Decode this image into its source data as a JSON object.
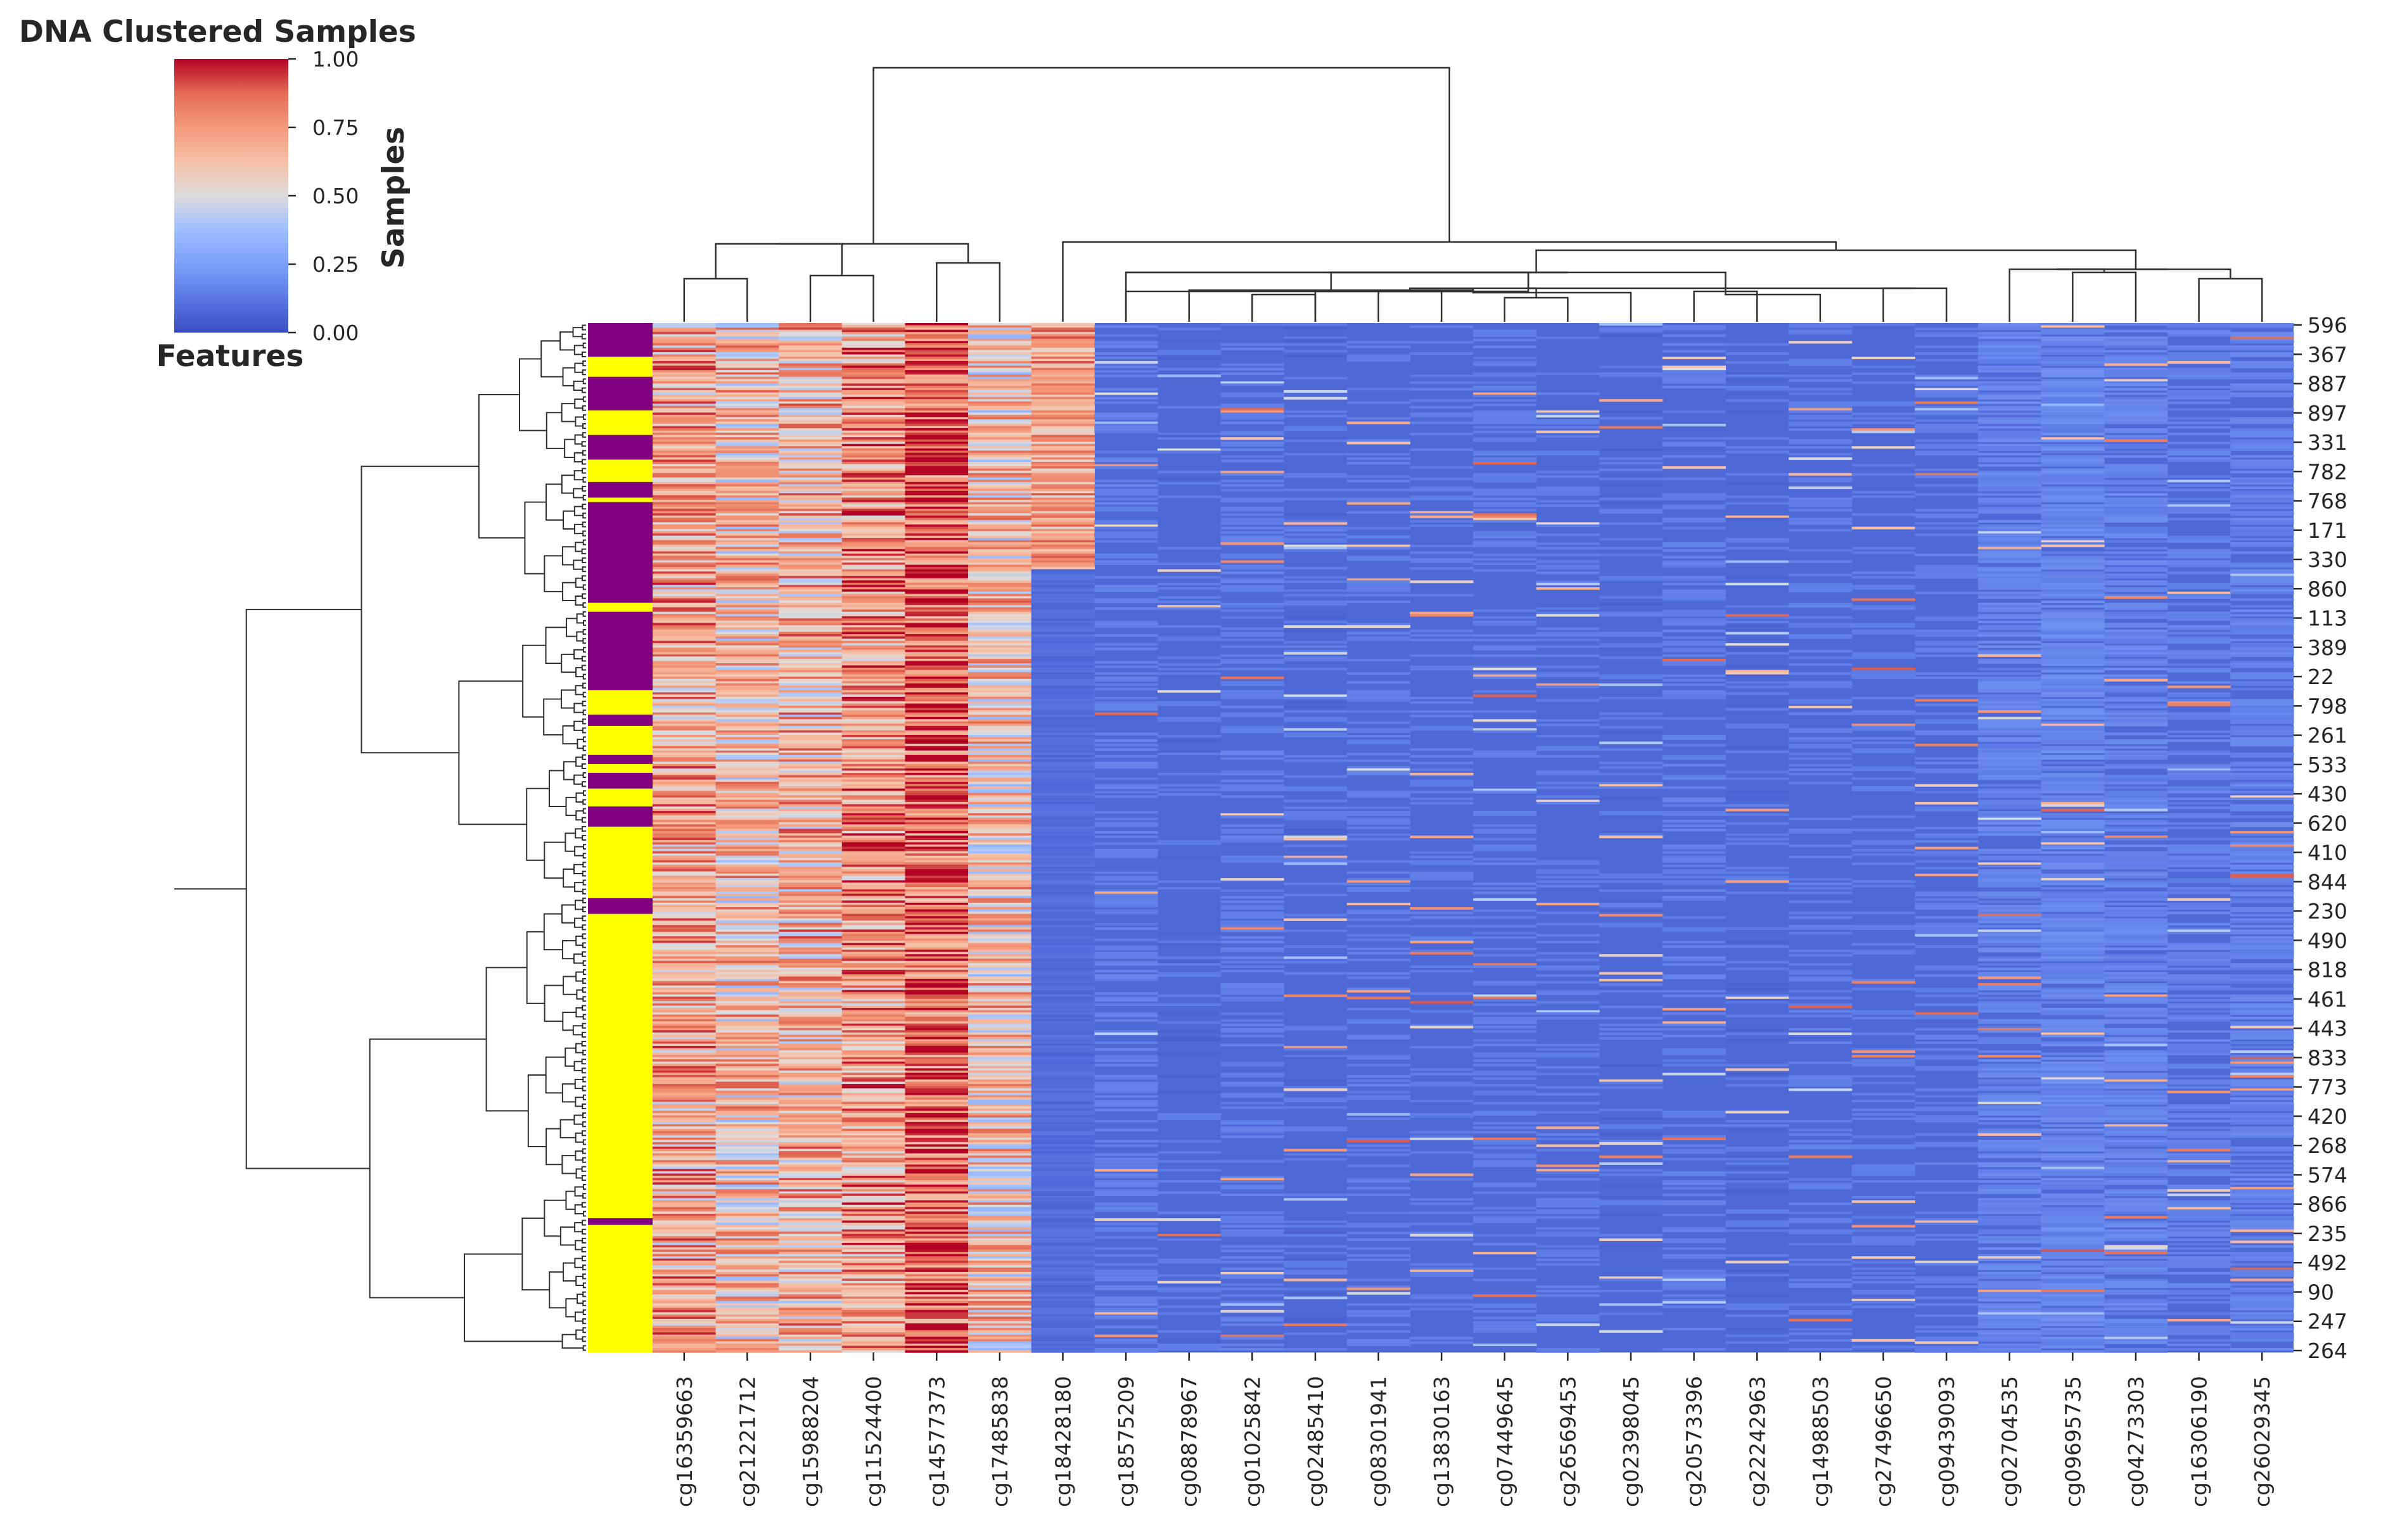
{
  "chart_data": {
    "type": "heatmap",
    "title": "DNA Clustered Samples",
    "xlabel": "Features",
    "ylabel": "Samples",
    "colormap": "coolwarm",
    "vmin": 0.0,
    "vmax": 1.0,
    "colorbar": {
      "ticks": [
        0.0,
        0.25,
        0.5,
        0.75,
        1.0
      ],
      "tick_labels": [
        "0.00",
        "0.25",
        "0.50",
        "0.75",
        "1.00"
      ]
    },
    "columns": [
      "cg16359663",
      "cg21221712",
      "cg15988204",
      "cg11524400",
      "cg14577373",
      "cg17485838",
      "cg18428180",
      "cg18575209",
      "cg08878967",
      "cg01025842",
      "cg02485410",
      "cg08301941",
      "cg13830163",
      "cg07449645",
      "cg26569453",
      "cg02398045",
      "cg20573396",
      "cg22242963",
      "cg14988503",
      "cg27496650",
      "cg09439093",
      "cg02704535",
      "cg09695735",
      "cg04273303",
      "cg16306190",
      "cg26029345"
    ],
    "row_tick_labels": [
      "596",
      "367",
      "887",
      "897",
      "331",
      "782",
      "768",
      "171",
      "330",
      "860",
      "113",
      "389",
      "22",
      "798",
      "261",
      "533",
      "430",
      "620",
      "410",
      "844",
      "230",
      "490",
      "818",
      "461",
      "443",
      "833",
      "773",
      "420",
      "268",
      "574",
      "866",
      "235",
      "492",
      "90",
      "247",
      "264"
    ],
    "column_means": [
      0.7,
      0.62,
      0.66,
      0.74,
      0.86,
      0.62,
      0.25,
      0.14,
      0.1,
      0.13,
      0.1,
      0.12,
      0.11,
      0.12,
      0.11,
      0.1,
      0.13,
      0.1,
      0.12,
      0.11,
      0.12,
      0.18,
      0.2,
      0.18,
      0.15,
      0.17
    ],
    "row_color_bar": {
      "colors": [
        "#800080",
        "#ffff00"
      ],
      "note": "sample group annotation"
    }
  }
}
